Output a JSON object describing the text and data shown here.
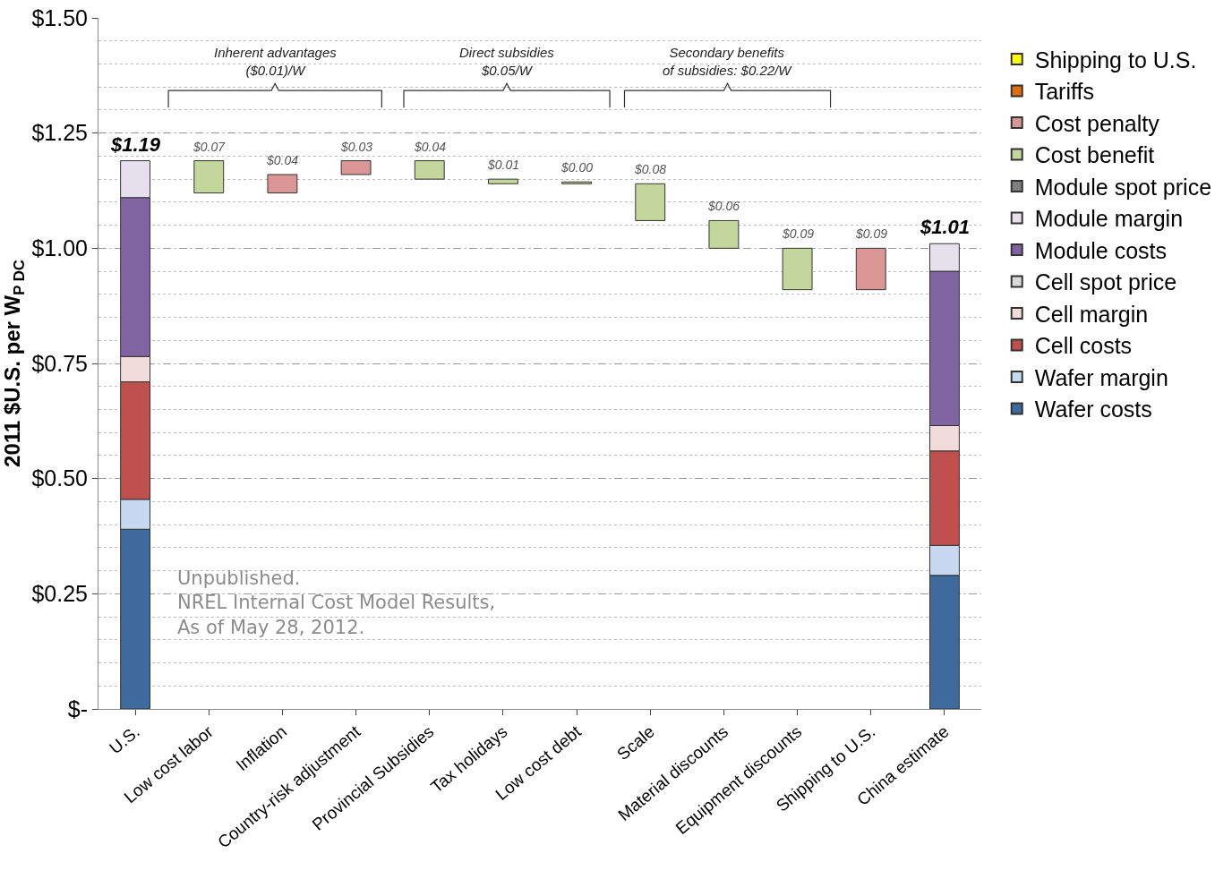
{
  "chart_data": {
    "type": "bar",
    "stacked": true,
    "ylabel": "2011 $U.S. per W$_{P DC}$",
    "categories": [
      "U.S.",
      "Low cost labor",
      "Inflation",
      "Country-risk adjustment",
      "Provincial Subsidies",
      "Tax holidays",
      "Low cost debt",
      "Scale",
      "Material discounts",
      "Equipment discounts",
      "Shipping to U.S.",
      "China estimate"
    ],
    "series": [
      {
        "name": "Wafer costs",
        "color": "#3e6a9e",
        "values": [
          0.39,
          null,
          null,
          null,
          null,
          null,
          null,
          null,
          null,
          null,
          null,
          0.29
        ]
      },
      {
        "name": "Wafer margin",
        "color": "#c6d9f1",
        "values": [
          0.065,
          null,
          null,
          null,
          null,
          null,
          null,
          null,
          null,
          null,
          null,
          0.065
        ]
      },
      {
        "name": "Cell costs",
        "color": "#c0504d",
        "values": [
          0.255,
          null,
          null,
          null,
          null,
          null,
          null,
          null,
          null,
          null,
          null,
          0.205
        ]
      },
      {
        "name": "Cell margin",
        "color": "#f2dcdb",
        "values": [
          0.055,
          null,
          null,
          null,
          null,
          null,
          null,
          null,
          null,
          null,
          null,
          0.055
        ]
      },
      {
        "name": "Cell spot price",
        "color": "#d9d9d9",
        "values": [
          null,
          null,
          null,
          null,
          null,
          null,
          null,
          null,
          null,
          null,
          null,
          null
        ]
      },
      {
        "name": "Module costs",
        "color": "#8064a2",
        "values": [
          0.345,
          null,
          null,
          null,
          null,
          null,
          null,
          null,
          null,
          null,
          null,
          0.335
        ]
      },
      {
        "name": "Module margin",
        "color": "#e6e0ec",
        "values": [
          0.08,
          null,
          null,
          null,
          null,
          null,
          null,
          null,
          null,
          null,
          null,
          0.06
        ]
      },
      {
        "name": "Module spot price",
        "color": "#7f7f7f",
        "values": [
          null,
          null,
          null,
          null,
          null,
          null,
          null,
          null,
          null,
          null,
          null,
          null
        ]
      },
      {
        "name": "Cost benefit",
        "color": "#c3d69b",
        "values": [
          null,
          0.07,
          null,
          null,
          0.04,
          0.01,
          0.004,
          0.08,
          0.06,
          0.09,
          null,
          null
        ],
        "base": [
          null,
          1.12,
          null,
          null,
          1.15,
          1.14,
          1.14,
          1.06,
          1.0,
          0.91,
          null,
          null
        ],
        "value_labels": [
          null,
          "$0.07",
          null,
          null,
          "$0.04",
          "$0.01",
          "$0.00",
          "$0.08",
          "$0.06",
          "$0.09",
          null,
          null
        ]
      },
      {
        "name": "Cost penalty",
        "color": "#d99694",
        "values": [
          null,
          null,
          0.04,
          0.03,
          null,
          null,
          null,
          null,
          null,
          null,
          0.09,
          null
        ],
        "base": [
          null,
          null,
          1.12,
          1.16,
          null,
          null,
          null,
          null,
          null,
          null,
          0.91,
          null
        ],
        "value_labels": [
          null,
          null,
          "$0.04",
          "$0.03",
          null,
          null,
          null,
          null,
          null,
          null,
          "$0.09",
          null
        ]
      },
      {
        "name": "Tariffs",
        "color": "#e46c0a",
        "values": [
          null,
          null,
          null,
          null,
          null,
          null,
          null,
          null,
          null,
          null,
          null,
          null
        ]
      },
      {
        "name": "Shipping to U.S.",
        "color": "#ffff00",
        "values": [
          null,
          null,
          null,
          null,
          null,
          null,
          null,
          null,
          null,
          null,
          null,
          null
        ]
      }
    ],
    "totals": [
      "$1.19",
      null,
      null,
      null,
      null,
      null,
      null,
      null,
      null,
      null,
      null,
      "$1.01"
    ],
    "ylim": [
      0,
      1.5
    ],
    "yticks": [
      {
        "value": 0,
        "label": "$-"
      },
      {
        "value": 0.25,
        "label": "$0.25"
      },
      {
        "value": 0.5,
        "label": "$0.50"
      },
      {
        "value": 0.75,
        "label": "$0.75"
      },
      {
        "value": 1.0,
        "label": "$1.00"
      },
      {
        "value": 1.25,
        "label": "$1.25"
      },
      {
        "value": 1.5,
        "label": "$1.50"
      }
    ],
    "grid": "y",
    "legend": "right",
    "annotations": [
      "Inherent advantages\n($0.01)/W",
      "Direct subsidies\n$0.05/W",
      "Secondary benefits\nof subsidies: $0.22/W",
      "Unpublished.\nNREL Internal Cost Model Results,\nAs of May 28, 2012."
    ]
  }
}
